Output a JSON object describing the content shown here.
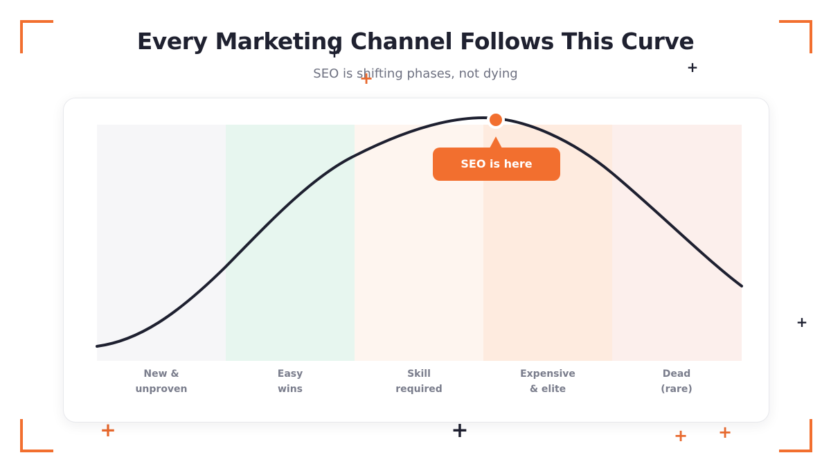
{
  "header": {
    "title": "Every Marketing Channel Follows This Curve",
    "subtitle": "SEO is shifting phases, not dying"
  },
  "phases": [
    {
      "line1": "New &",
      "line2": "unproven",
      "color": "#F6F6F8"
    },
    {
      "line1": "Easy",
      "line2": "wins",
      "color": "#E7F6EF"
    },
    {
      "line1": "Skill",
      "line2": "required",
      "color": "#FEF5EF"
    },
    {
      "line1": "Expensive",
      "line2": "& elite",
      "color": "#FEEBDF"
    },
    {
      "line1": "Dead",
      "line2": "(rare)",
      "color": "#FCEFEC"
    }
  ],
  "marker": {
    "label": "SEO is here"
  },
  "colors": {
    "accent": "#F26F2F",
    "curve": "#1E2030",
    "title": "#1F2130",
    "subtitle": "#6D7080"
  },
  "icons": [
    "plus-icon",
    "corner-bracket-icon"
  ]
}
